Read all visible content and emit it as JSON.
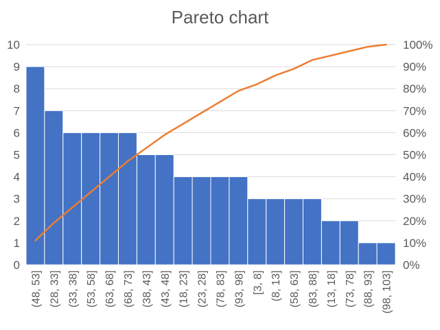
{
  "chart_data": {
    "type": "bar",
    "title": "Pareto chart",
    "categories": [
      "(48, 53]",
      "(28, 33]",
      "(33, 38]",
      "(53, 58]",
      "(63, 68]",
      "(68, 73]",
      "(38, 43]",
      "(43, 48]",
      "(18, 23]",
      "(23, 28]",
      "(78, 83]",
      "(93, 98]",
      "[3, 8]",
      "(8, 13]",
      "(58, 63]",
      "(83, 88]",
      "(13, 18]",
      "(73, 78]",
      "(88, 93]",
      "(98, 103]"
    ],
    "series": [
      {
        "type": "bar",
        "axis": "left",
        "color": "#4472C4",
        "values": [
          9,
          7,
          6,
          6,
          6,
          6,
          5,
          5,
          4,
          4,
          4,
          4,
          3,
          3,
          3,
          3,
          2,
          2,
          1,
          1
        ]
      },
      {
        "type": "line",
        "axis": "right",
        "color": "#ED7D31",
        "values": [
          11,
          19,
          26,
          33,
          40,
          47,
          53,
          59,
          64,
          69,
          74,
          79,
          82,
          86,
          89,
          93,
          95,
          97,
          99,
          100
        ]
      }
    ],
    "y_left": {
      "min": 0,
      "max": 10,
      "ticks": [
        "0",
        "1",
        "2",
        "3",
        "4",
        "5",
        "6",
        "7",
        "8",
        "9",
        "10"
      ]
    },
    "y_right": {
      "min": 0,
      "max": 100,
      "ticks": [
        "0%",
        "10%",
        "20%",
        "30%",
        "40%",
        "50%",
        "60%",
        "70%",
        "80%",
        "90%",
        "100%"
      ]
    },
    "grid": true,
    "legend": "none"
  }
}
